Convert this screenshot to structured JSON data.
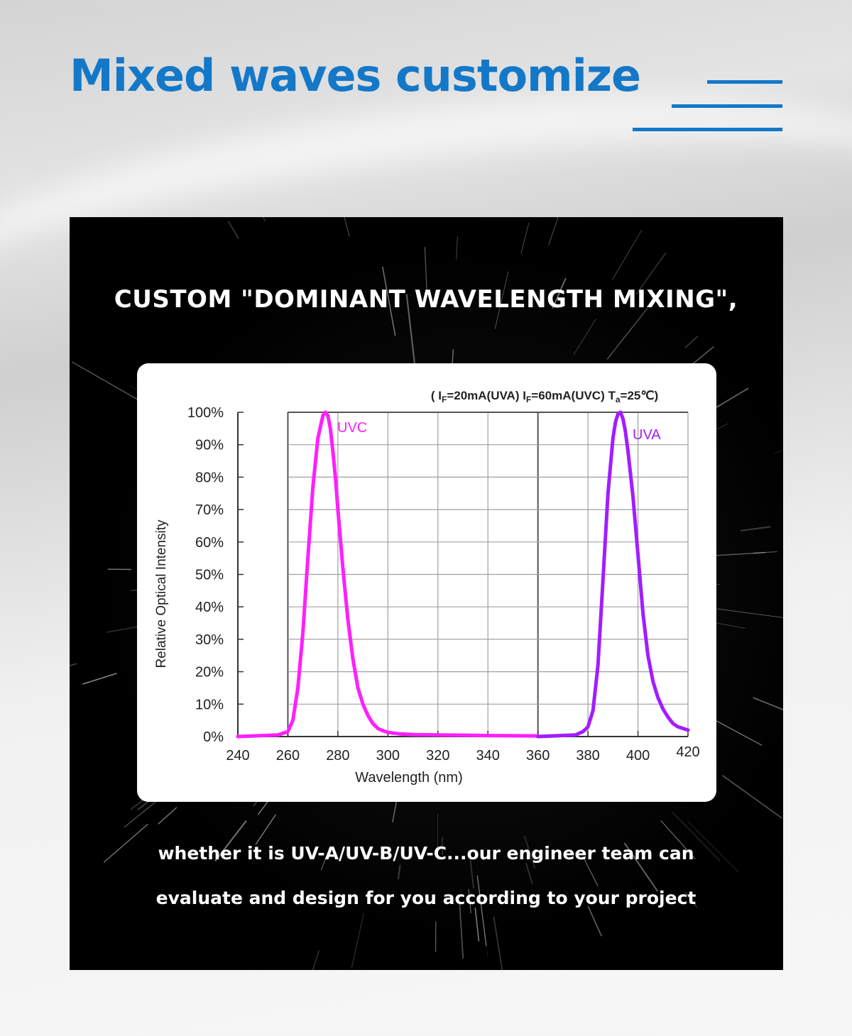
{
  "header": {
    "title": "Mixed waves customize"
  },
  "panel": {
    "heading": "CUSTOM \"DOMINANT WAVELENGTH MIXING\",",
    "text_line1": "whether it is UV-A/UV-B/UV-C...our engineer team can",
    "text_line2": "evaluate and design for you according to your project"
  },
  "colors": {
    "title_blue": "#1478c8",
    "uvc": "#ff1fff",
    "uva": "#a21dff"
  },
  "chart_data": {
    "type": "line",
    "conditions": {
      "part1": "( I",
      "sub1": "F",
      "part2": "=20mA(UVA)  I",
      "sub2": "F",
      "part3": "=60mA(UVC) T",
      "sub3": "a",
      "part4": "=25℃)"
    },
    "xlabel": "Wavelength (nm)",
    "ylabel": "Relative Optical Intensity",
    "xlim": [
      240,
      420
    ],
    "ylim": [
      0,
      100
    ],
    "x_ticks": [
      "240",
      "260",
      "280",
      "300",
      "320",
      "340",
      "360",
      "380",
      "400",
      "420"
    ],
    "y_ticks": [
      "0%",
      "10%",
      "20%",
      "30%",
      "40%",
      "50%",
      "60%",
      "70%",
      "80%",
      "90%",
      "100%"
    ],
    "grid": true,
    "series": [
      {
        "name": "UVC",
        "color": "#ff1fff",
        "x": [
          240,
          256,
          260,
          262,
          264,
          266,
          268,
          270,
          272,
          274,
          275,
          276,
          277,
          278,
          279,
          280,
          282,
          284,
          286,
          288,
          290,
          292,
          294,
          296,
          298,
          300,
          305,
          310,
          320,
          340,
          360
        ],
        "y": [
          0,
          0.5,
          1.5,
          5,
          15,
          32,
          55,
          77,
          92,
          99,
          100,
          99,
          95,
          88,
          80,
          70,
          52,
          36,
          24,
          15,
          10,
          6.5,
          4,
          2.5,
          1.8,
          1.3,
          0.8,
          0.6,
          0.5,
          0.3,
          0.2
        ]
      },
      {
        "name": "UVA",
        "color": "#a21dff",
        "x": [
          360,
          375,
          378,
          380,
          382,
          384,
          386,
          388,
          390,
          391,
          392,
          393,
          394,
          395,
          396,
          398,
          400,
          402,
          404,
          406,
          408,
          410,
          412,
          414,
          416,
          418,
          420
        ],
        "y": [
          0,
          0.5,
          1.5,
          3,
          8,
          22,
          48,
          75,
          92,
          97,
          99.5,
          100,
          98,
          94,
          88,
          74,
          56,
          38,
          25,
          17,
          12,
          8.5,
          6,
          4,
          3,
          2.5,
          2
        ]
      }
    ]
  }
}
